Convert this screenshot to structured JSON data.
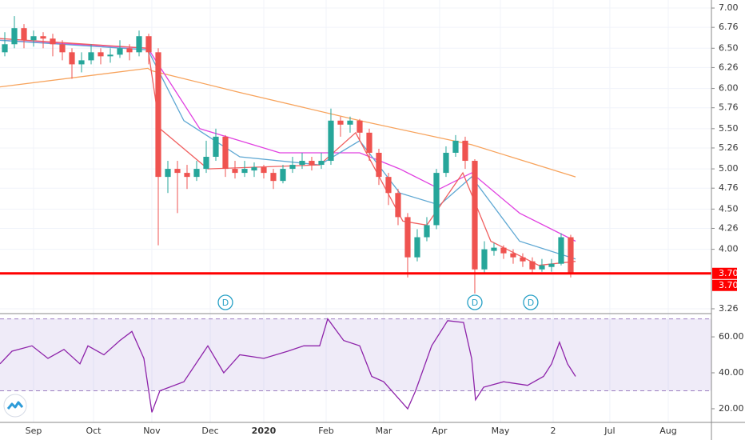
{
  "chart_data": [
    {
      "type": "candlestick",
      "x": [
        0,
        1,
        2,
        3,
        4,
        5,
        6,
        7,
        8,
        9,
        10,
        11,
        12,
        13,
        14,
        15,
        16,
        17,
        18,
        19,
        20,
        21,
        22,
        23,
        24,
        25,
        26,
        27,
        28,
        29,
        30,
        31,
        32,
        33,
        34,
        35,
        36,
        37,
        38,
        39,
        40,
        41,
        42,
        43,
        44,
        45,
        46,
        47,
        48,
        49,
        50,
        51,
        52,
        53,
        54,
        55,
        56,
        57,
        58,
        59
      ],
      "open": [
        6.45,
        6.55,
        6.75,
        6.6,
        6.65,
        6.62,
        6.55,
        6.45,
        6.3,
        6.35,
        6.45,
        6.4,
        6.42,
        6.5,
        6.45,
        6.65,
        6.45,
        4.9,
        5.0,
        4.95,
        4.9,
        5.0,
        5.15,
        5.4,
        5.0,
        4.95,
        4.98,
        5.02,
        4.95,
        4.85,
        5.0,
        5.05,
        5.1,
        5.05,
        5.1,
        5.6,
        5.55,
        5.6,
        5.45,
        5.2,
        4.9,
        4.7,
        4.4,
        3.9,
        4.15,
        4.3,
        4.95,
        5.2,
        5.35,
        5.1,
        3.75,
        3.98,
        4.02,
        3.95,
        3.9,
        3.85,
        3.75,
        3.78,
        3.82,
        4.15
      ],
      "high": [
        6.7,
        6.9,
        6.8,
        6.72,
        6.7,
        6.68,
        6.6,
        6.5,
        6.45,
        6.55,
        6.5,
        6.5,
        6.6,
        6.55,
        6.72,
        6.68,
        6.5,
        5.1,
        5.1,
        5.05,
        5.1,
        5.35,
        5.5,
        5.42,
        5.1,
        5.1,
        5.08,
        5.05,
        5.0,
        5.05,
        5.15,
        5.2,
        5.15,
        5.2,
        5.75,
        5.65,
        5.65,
        5.62,
        5.5,
        5.25,
        4.95,
        4.75,
        4.45,
        4.25,
        4.4,
        5.0,
        5.28,
        5.42,
        5.4,
        5.12,
        4.1,
        4.08,
        4.05,
        4.0,
        3.95,
        3.9,
        3.88,
        3.88,
        4.2,
        4.18
      ],
      "low": [
        6.4,
        6.5,
        6.5,
        6.52,
        6.5,
        6.4,
        6.35,
        6.12,
        6.2,
        6.3,
        6.3,
        6.32,
        6.38,
        6.35,
        6.4,
        6.3,
        4.05,
        4.7,
        4.45,
        4.75,
        4.85,
        4.95,
        5.1,
        4.9,
        4.88,
        4.9,
        4.9,
        4.88,
        4.75,
        4.82,
        4.95,
        5.0,
        4.98,
        5.0,
        5.05,
        5.4,
        5.45,
        5.35,
        5.1,
        4.8,
        4.55,
        4.3,
        3.65,
        3.85,
        4.1,
        4.25,
        4.9,
        5.15,
        5.0,
        3.45,
        3.7,
        3.92,
        3.88,
        3.82,
        3.78,
        3.7,
        3.72,
        3.72,
        3.8,
        3.65
      ],
      "close": [
        6.55,
        6.75,
        6.6,
        6.65,
        6.62,
        6.55,
        6.45,
        6.3,
        6.35,
        6.45,
        6.4,
        6.42,
        6.5,
        6.45,
        6.65,
        6.45,
        4.9,
        5.0,
        4.95,
        4.9,
        5.0,
        5.15,
        5.4,
        5.0,
        4.95,
        5.0,
        5.02,
        4.95,
        4.85,
        5.0,
        5.05,
        5.1,
        5.05,
        5.1,
        5.6,
        5.55,
        5.6,
        5.45,
        5.2,
        4.9,
        4.7,
        4.4,
        3.9,
        4.15,
        4.3,
        4.95,
        5.2,
        5.35,
        5.1,
        3.75,
        4.0,
        4.02,
        3.95,
        3.9,
        3.85,
        3.75,
        3.8,
        3.82,
        4.15,
        3.7
      ],
      "up_color": "#26a69a",
      "down_color": "#ef5350",
      "series": [
        {
          "color": "#f7a35c",
          "x": [
            -0.5,
            14.92,
            15.33,
            24.5,
            37,
            48.67,
            59.5
          ],
          "values": [
            6.02,
            6.25,
            6.22,
            5.95,
            5.6,
            5.3,
            4.9
          ]
        },
        {
          "color": "#e040e0",
          "x": [
            -0.5,
            14.92,
            20.33,
            28.67,
            37,
            41.17,
            45.33,
            48.67,
            53.67,
            59.5
          ],
          "values": [
            6.6,
            6.5,
            5.5,
            5.2,
            5.2,
            5.0,
            4.75,
            4.95,
            4.45,
            4.1
          ]
        },
        {
          "color": "#5fa8d3",
          "x": [
            -0.5,
            14.92,
            18.67,
            24.5,
            32.83,
            37,
            41.17,
            45.33,
            48.67,
            53.67,
            59.5
          ],
          "values": [
            6.6,
            6.48,
            5.6,
            5.15,
            5.05,
            5.35,
            4.7,
            4.55,
            4.9,
            4.1,
            3.88
          ]
        },
        {
          "color": "#f06060",
          "x": [
            -0.5,
            14.92,
            16.17,
            21.17,
            32.83,
            36.58,
            41.5,
            44,
            47.75,
            50.67,
            55.67,
            59.5
          ],
          "values": [
            6.62,
            6.5,
            5.5,
            5.0,
            5.05,
            5.45,
            4.35,
            4.3,
            4.95,
            4.1,
            3.8,
            3.85
          ]
        }
      ],
      "hline": {
        "value": 3.7,
        "label": "3.70",
        "color": "#ff0000"
      },
      "last_price": {
        "value": 3.7,
        "label": "3.70"
      },
      "dividends": {
        "x": [
          23,
          49,
          54.83
        ],
        "labels": [
          "D",
          "D",
          "D"
        ]
      },
      "xlim": [
        -0.5,
        73.67
      ],
      "xticks": [
        {
          "value": 3,
          "label": "Sep"
        },
        {
          "value": 9.25,
          "label": "Oct"
        },
        {
          "value": 15.33,
          "label": "Nov"
        },
        {
          "value": 21.42,
          "label": "Dec"
        },
        {
          "value": 27,
          "label": "2020"
        },
        {
          "value": 33.5,
          "label": "Feb"
        },
        {
          "value": 39.5,
          "label": "Mar"
        },
        {
          "value": 45.33,
          "label": "Apr"
        },
        {
          "value": 51.67,
          "label": "May"
        },
        {
          "value": 57.17,
          "label": "2"
        },
        {
          "value": 63.08,
          "label": "Jul"
        },
        {
          "value": 69.17,
          "label": "Aug"
        }
      ],
      "ylim": [
        3.22,
        7.1
      ],
      "yticks": [
        {
          "value": 7,
          "label": "7.00"
        },
        6.76,
        {
          "value": 6.5,
          "label": "6.50"
        },
        6.26,
        {
          "value": 6,
          "label": "6.00"
        },
        5.76,
        {
          "value": 5.5,
          "label": "5.50"
        },
        5.26,
        {
          "value": 5,
          "label": "5.00"
        },
        4.76,
        {
          "value": 4.5,
          "label": "4.50"
        },
        4.26,
        {
          "value": 4,
          "label": "4.00"
        },
        3.26
      ],
      "grid": true
    },
    {
      "type": "line",
      "series": [
        {
          "color": "#8e24aa",
          "x": [
            -0.5,
            0.75,
            2.83,
            4.5,
            6.17,
            7.83,
            8.67,
            10.33,
            12,
            13.25,
            14.5,
            15.33,
            16.17,
            18.67,
            21.17,
            22.83,
            24.5,
            27,
            29.5,
            31.17,
            32.83,
            33.67,
            35.33,
            37,
            38.25,
            39.5,
            41.17,
            42,
            42.83,
            44.5,
            46.17,
            47.83,
            48.67,
            49.08,
            49.92,
            52,
            54.5,
            56.17,
            57,
            57.83,
            58.67,
            59.5
          ],
          "values": [
            45,
            52,
            55,
            48,
            53,
            45,
            55,
            50,
            58,
            63,
            48,
            18,
            30,
            35,
            55,
            40,
            50,
            48,
            52,
            55,
            55,
            70,
            58,
            55,
            38,
            35,
            25,
            20,
            30,
            55,
            69,
            68,
            48,
            25,
            32,
            35,
            33,
            38,
            45,
            57,
            45,
            38
          ]
        }
      ],
      "band": [
        30,
        70
      ],
      "ylim": [
        9.3,
        71.6
      ],
      "yticks": [
        {
          "value": 60,
          "label": "60.00"
        },
        {
          "value": 40,
          "label": "40.00"
        },
        {
          "value": 20,
          "label": "20.00"
        }
      ]
    }
  ]
}
